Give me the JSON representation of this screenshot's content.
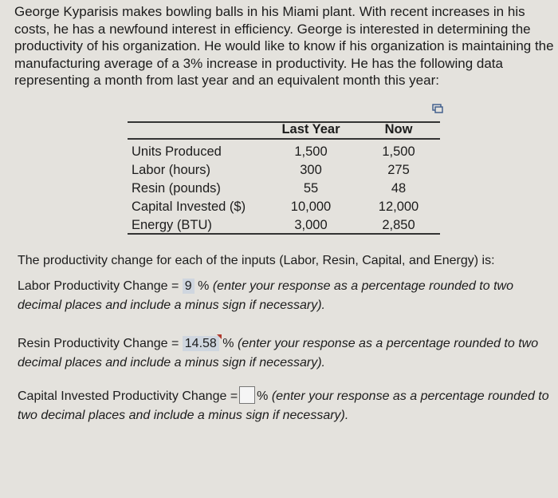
{
  "intro": "George Kyparisis makes bowling balls in his Miami plant. With recent increases in his costs, he has a newfound interest in efficiency. George is interested in determining the productivity of his organization. He would like to know if his organization is maintaining the manufacturing average of a 3% increase in productivity. He has the following data representing a month from last year and an equivalent month this year:",
  "table": {
    "headers": [
      "Last Year",
      "Now"
    ],
    "rows": [
      {
        "label": "Units Produced",
        "last": "1,500",
        "now": "1,500"
      },
      {
        "label": "Labor (hours)",
        "last": "300",
        "now": "275"
      },
      {
        "label": "Resin (pounds)",
        "last": "55",
        "now": "48"
      },
      {
        "label": "Capital Invested ($)",
        "last": "10,000",
        "now": "12,000"
      },
      {
        "label": "Energy (BTU)",
        "last": "3,000",
        "now": "2,850"
      }
    ],
    "icon": "copy-icon"
  },
  "prompt": "The productivity change for each of the inputs (Labor, Resin, Capital, and Energy) is:",
  "questions": [
    {
      "label": "Labor Productivity Change =",
      "value": "9",
      "suffix": "%",
      "instruction": "(enter your response as a percentage rounded to two decimal places and include a minus sign if necessary)."
    },
    {
      "label": "Resin Productivity Change =",
      "value": "14.58",
      "suffix": "%",
      "instruction": "(enter your response as a percentage rounded to two decimal places and include a minus sign if necessary)."
    },
    {
      "label": "Capital Invested Productivity Change =",
      "value": "",
      "suffix": "%",
      "instruction": "(enter your response as a percentage rounded to two decimal places and include a minus sign if necessary)."
    }
  ]
}
